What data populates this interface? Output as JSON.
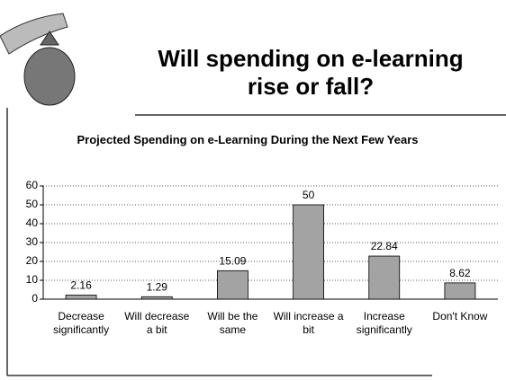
{
  "heading": "Will spending on e-learning rise or fall?",
  "chart_data": {
    "type": "bar",
    "title": "Projected Spending on e-Learning During the Next Few Years",
    "categories": [
      "Decrease significantly",
      "Will decrease a bit",
      "Will be the same",
      "Will increase a bit",
      "Increase significantly",
      "Don't Know"
    ],
    "values": [
      2.16,
      1.29,
      15.09,
      50,
      22.84,
      8.62
    ],
    "color": "#a3a3a3",
    "ylim": [
      0,
      60
    ],
    "yticks": [
      0,
      10,
      20,
      30,
      40,
      50,
      60
    ],
    "grid": true
  }
}
